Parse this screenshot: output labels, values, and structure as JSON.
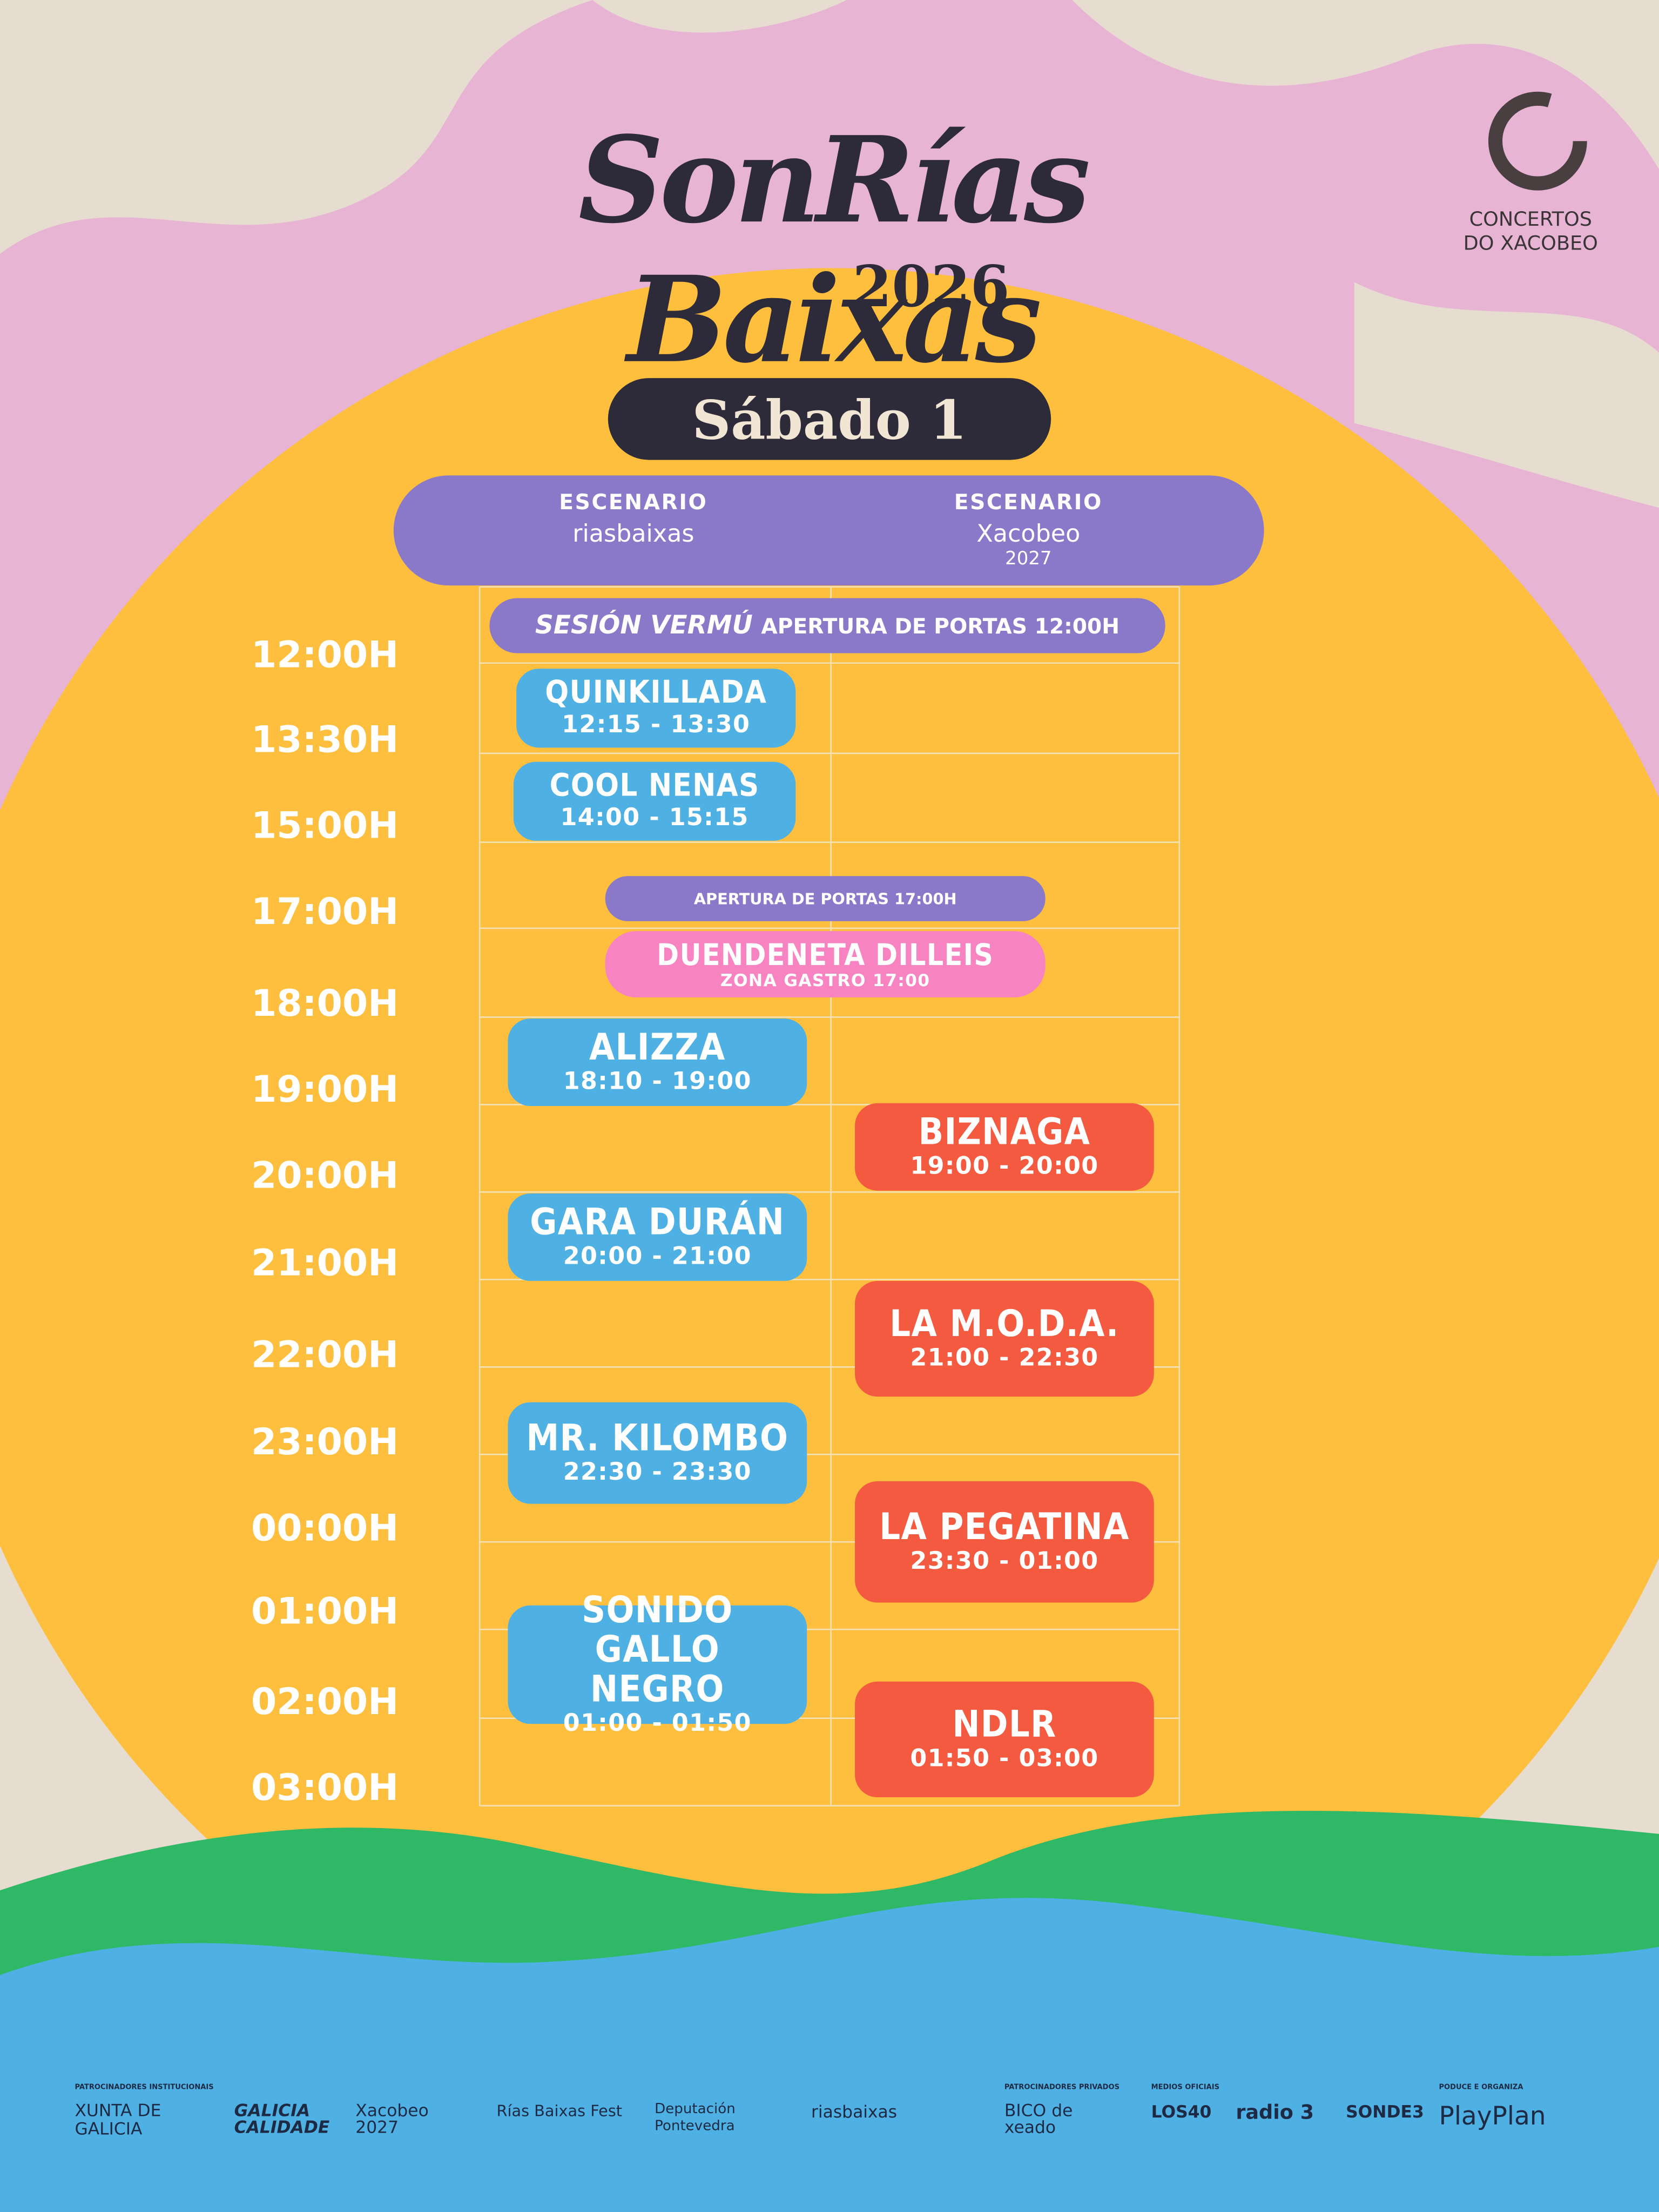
{
  "header": {
    "title": "SonRías Baixas",
    "year": "2026",
    "badge": [
      "CONCERTOS",
      "DO XACOBEO"
    ]
  },
  "day": "Sábado 1",
  "stages": [
    {
      "label": "ESCENARIO",
      "name": "riasbaixas"
    },
    {
      "label": "ESCENARIO",
      "name": "Xacobeo",
      "year": "2027"
    }
  ],
  "times": [
    "12:00H",
    "13:30H",
    "15:00H",
    "17:00H",
    "18:00H",
    "19:00H",
    "20:00H",
    "21:00H",
    "22:00H",
    "23:00H",
    "00:00H",
    "01:00H",
    "02:00H",
    "03:00H"
  ],
  "banners": {
    "vermu": {
      "highlight": "SESIÓN VERMÚ",
      "text": "APERTURA DE PORTAS 12:00H"
    },
    "afternoon": "APERTURA DE PORTAS 17:00H"
  },
  "gastro": {
    "name": "DUENDENETA DILLEIS",
    "time": "ZONA GASTRO 17:00"
  },
  "acts": [
    {
      "name": "QUINKILLADA",
      "time": "12:15 - 13:30"
    },
    {
      "name": "COOL NENAS",
      "time": "14:00 - 15:15"
    },
    {
      "name": "ALIZZA",
      "time": "18:10 - 19:00"
    },
    {
      "name": "BIZNAGA",
      "time": "19:00 - 20:00"
    },
    {
      "name": "GARA DURÁN",
      "time": "20:00 - 21:00"
    },
    {
      "name": "LA M.O.D.A.",
      "time": "21:00 - 22:30"
    },
    {
      "name": "MR. KILOMBO",
      "time": "22:30 - 23:30"
    },
    {
      "name": "LA PEGATINA",
      "time": "23:30 - 01:00"
    },
    {
      "name": "SONIDO GALLO NEGRO",
      "time": "01:00 - 01:50"
    },
    {
      "name": "NDLR",
      "time": "01:50 - 03:00"
    }
  ],
  "sponsors": {
    "institutional_heading": "PATROCINADORES INSTITUCIONAIS",
    "institutional": [
      "XUNTA DE GALICIA",
      "GALICIA CALIDADE",
      "Xacobeo 2027",
      "Rías Baixas Fest",
      "Deputación Pontevedra",
      "riasbaixas"
    ],
    "private_heading": "PATROCINADORES PRIVADOS",
    "private": [
      "BICO de xeado"
    ],
    "media_heading": "MEDIOS OFICIAIS",
    "media": [
      "LOS40",
      "radio 3",
      "SONDE3"
    ],
    "organizer_heading": "PODUCE E ORGANIZA",
    "organizer": "PlayPlan"
  }
}
